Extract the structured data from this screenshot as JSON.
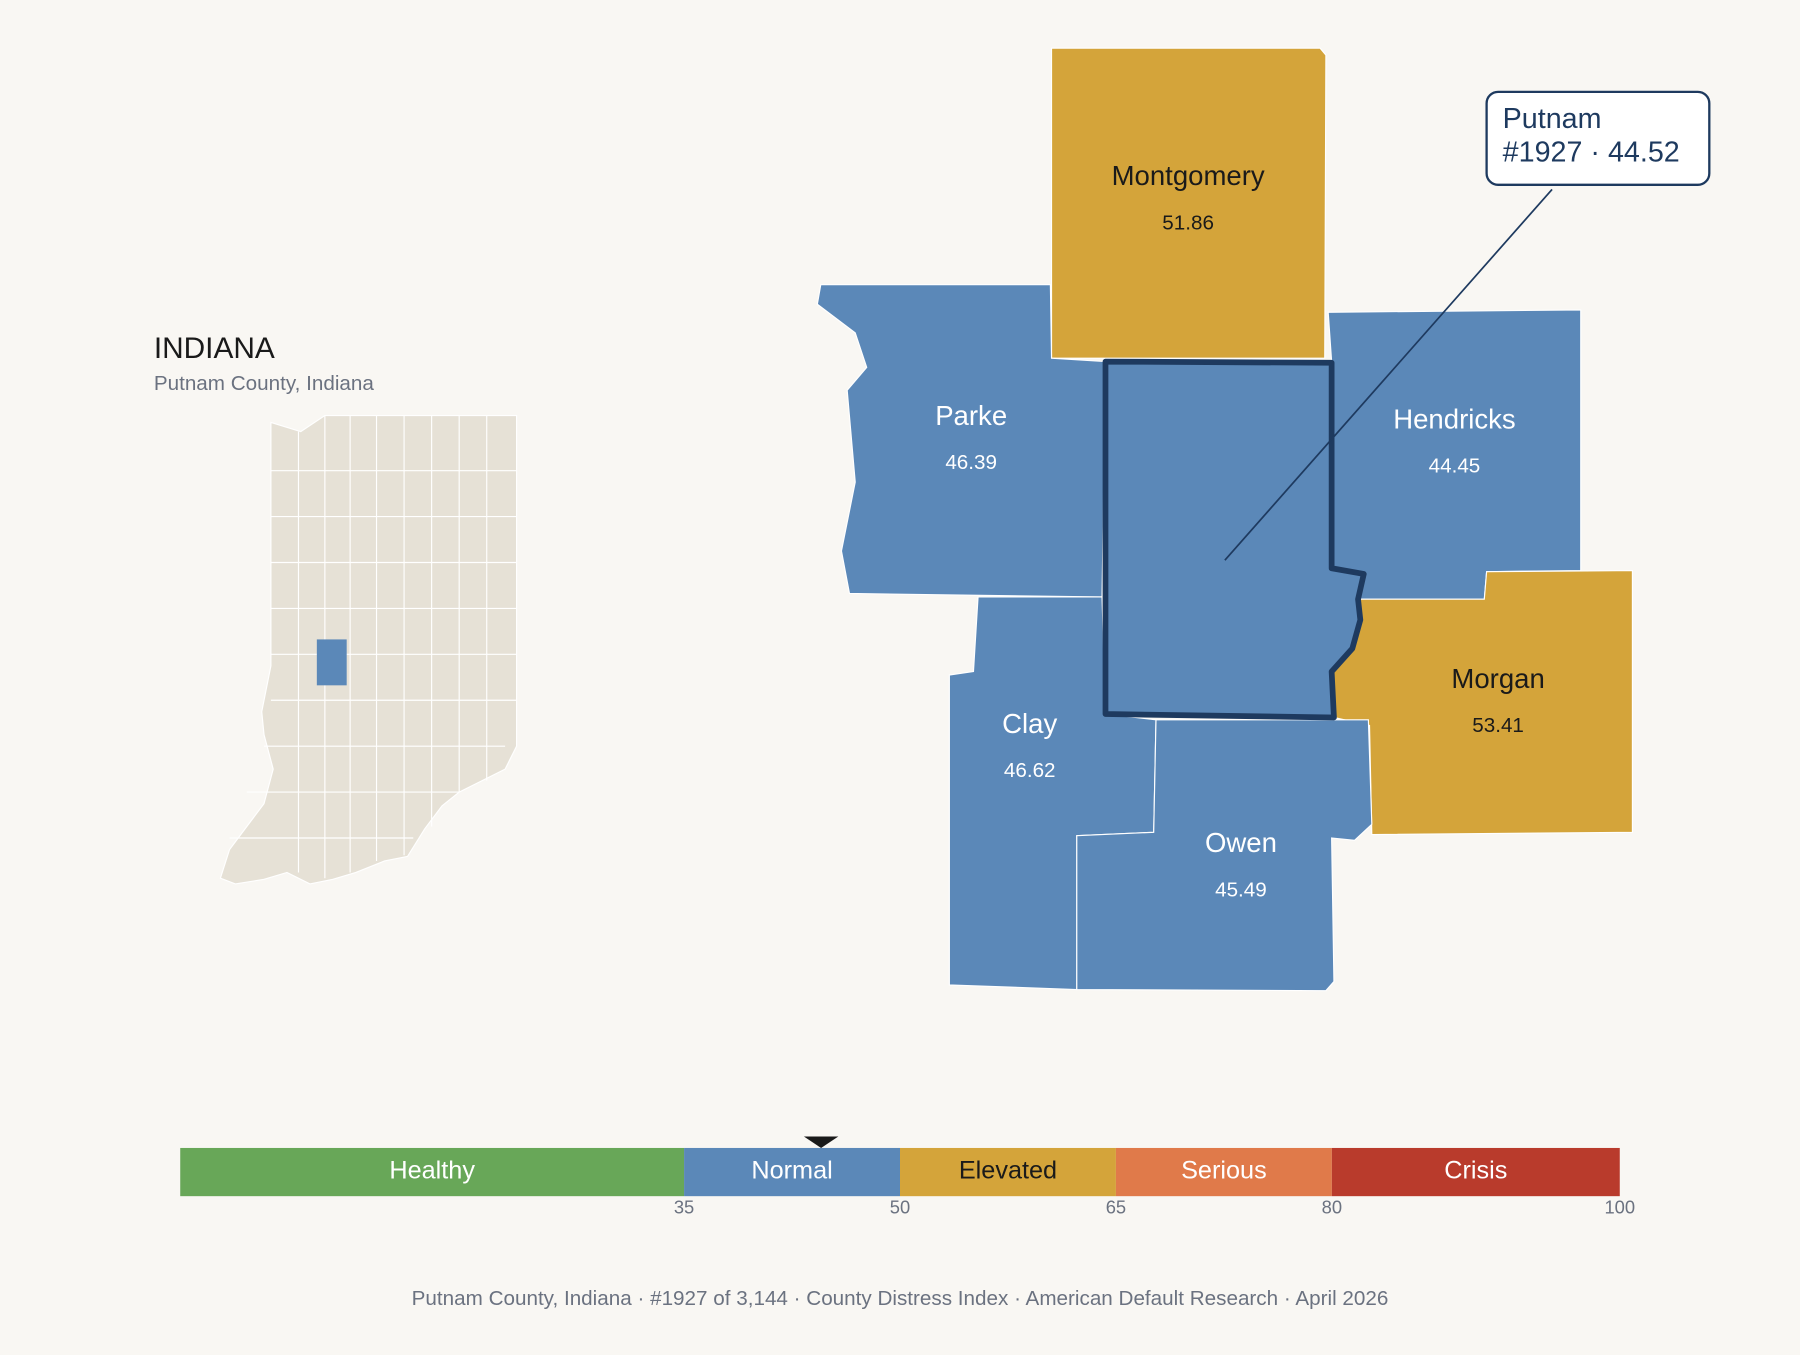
{
  "inset": {
    "title": "INDIANA",
    "subtitle": "Putnam County, Indiana"
  },
  "counties": [
    {
      "name": "Montgomery",
      "value": 51.86,
      "color": "#d4a43a",
      "label_color": "#1a1a1a"
    },
    {
      "name": "Parke",
      "value": 46.39,
      "color": "#5b88b8",
      "label_color": "#ffffff"
    },
    {
      "name": "Hendricks",
      "value": 44.45,
      "color": "#5b88b8",
      "label_color": "#ffffff"
    },
    {
      "name": "Morgan",
      "value": 53.41,
      "color": "#d4a43a",
      "label_color": "#1a1a1a"
    },
    {
      "name": "Clay",
      "value": 46.62,
      "color": "#5b88b8",
      "label_color": "#ffffff"
    },
    {
      "name": "Owen",
      "value": 45.49,
      "color": "#5b88b8",
      "label_color": "#ffffff"
    }
  ],
  "callout": {
    "name": "Putnam",
    "label": "#1927 · 44.52",
    "value": 44.52,
    "color": "#5b88b8"
  },
  "scale": {
    "xlim": [
      0,
      100
    ],
    "xticks": [
      35,
      50,
      65,
      80,
      100
    ],
    "bands": [
      {
        "name": "Healthy",
        "color": "#68a758",
        "label_color": "#ffffff"
      },
      {
        "name": "Normal",
        "color": "#5b88b8",
        "label_color": "#ffffff"
      },
      {
        "name": "Elevated",
        "color": "#d4a43a",
        "label_color": "#1a1a1a"
      },
      {
        "name": "Serious",
        "color": "#e07a4a",
        "label_color": "#ffffff"
      },
      {
        "name": "Crisis",
        "color": "#b93b2c",
        "label_color": "#ffffff"
      }
    ]
  },
  "footer": "Putnam County, Indiana  ·  #1927 of 3,144  ·  County Distress Index  ·  American Default Research  ·  April 2026"
}
